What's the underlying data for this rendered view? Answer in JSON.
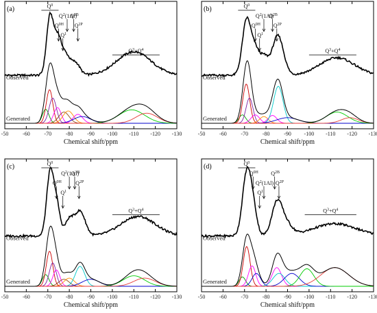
{
  "figure": {
    "axis_title": "Chemical shift/ppm",
    "trace_labels": {
      "observed": "Observed",
      "generated": "Generated"
    },
    "colors": {
      "observed": "#000000",
      "envelope": "#000000",
      "components": [
        "#00a000",
        "#7b1fa2",
        "#cc0000",
        "#ff00ff",
        "#8b4513",
        "#ff8c00",
        "#00c8c8",
        "#0000cc",
        "#00cc00",
        "#e53935",
        "#2e7d32",
        "#1565c0"
      ]
    }
  },
  "chart_data": [
    {
      "id": "a",
      "panel_label": "(a)",
      "type": "line",
      "xlim": [
        -50,
        -130
      ],
      "x_ticks": [
        -50,
        -60,
        -70,
        -80,
        -90,
        -100,
        -110,
        -120,
        -130
      ],
      "grid": false,
      "legend": "none",
      "annotations": [
        {
          "label": "Q",
          "sup": "0",
          "x_start": -67,
          "x_end": -75,
          "kind": "bracket"
        },
        {
          "label": "Q",
          "sup": "2",
          "suffix": "(1Al)",
          "x": -79,
          "kind": "arrow"
        },
        {
          "label": "Q",
          "sup": "0H",
          "x": -75,
          "kind": "arrow"
        },
        {
          "label": "Q",
          "sup": "1",
          "x": -77,
          "kind": "arrow"
        },
        {
          "label": "Q",
          "sup": "2B",
          "x": -82,
          "kind": "arrow"
        },
        {
          "label": "Q",
          "sup": "2P",
          "x": -84,
          "kind": "arrow"
        },
        {
          "label": "Q",
          "sup": "3",
          "mid": "+Q",
          "sup2": "4",
          "x_start": -100,
          "x_end": -122,
          "kind": "bracket"
        }
      ],
      "observed_peaks": [
        {
          "center": -71,
          "height": 1.0,
          "width": 1.6
        },
        {
          "center": -74.5,
          "height": 0.55,
          "width": 1.6
        },
        {
          "center": -78,
          "height": 0.36,
          "width": 2.2
        },
        {
          "center": -83,
          "height": 0.2,
          "width": 2.0
        },
        {
          "center": -110,
          "height": 0.4,
          "width": 8.0
        }
      ],
      "components": [
        {
          "center": -69,
          "height": 0.25,
          "width": 1.5,
          "color_index": 0
        },
        {
          "center": -70.8,
          "height": 0.6,
          "width": 1.5,
          "color_index": 2
        },
        {
          "center": -72.3,
          "height": 0.45,
          "width": 1.7,
          "color_index": 1
        },
        {
          "center": -74.5,
          "height": 0.28,
          "width": 1.7,
          "color_index": 3
        },
        {
          "center": -77.5,
          "height": 0.2,
          "width": 2.4,
          "color_index": 4
        },
        {
          "center": -79.5,
          "height": 0.22,
          "width": 2.4,
          "color_index": 5
        },
        {
          "center": -84,
          "height": 0.16,
          "width": 2.2,
          "color_index": 3
        },
        {
          "center": -86,
          "height": 0.12,
          "width": 4.0,
          "color_index": 7
        },
        {
          "center": -109,
          "height": 0.24,
          "width": 6.0,
          "color_index": 8
        },
        {
          "center": -116,
          "height": 0.18,
          "width": 5.0,
          "color_index": 9
        }
      ]
    },
    {
      "id": "b",
      "panel_label": "(b)",
      "type": "line",
      "xlim": [
        -50,
        -130
      ],
      "x_ticks": [
        -50,
        -60,
        -70,
        -80,
        -90,
        -100,
        -110,
        -120,
        -130
      ],
      "grid": false,
      "legend": "none",
      "annotations": [
        {
          "label": "Q",
          "sup": "0",
          "x_start": -67,
          "x_end": -75,
          "kind": "bracket"
        },
        {
          "label": "Q",
          "sup": "2",
          "suffix": "(1Al)",
          "x": -79,
          "kind": "arrow"
        },
        {
          "label": "Q",
          "sup": "0H",
          "x": -75,
          "kind": "arrow"
        },
        {
          "label": "Q",
          "sup": "1",
          "x": -77,
          "kind": "arrow"
        },
        {
          "label": "Q",
          "sup": "2B",
          "x": -83,
          "kind": "arrow"
        },
        {
          "label": "Q",
          "sup": "2P",
          "x": -85,
          "kind": "arrow"
        },
        {
          "label": "Q",
          "sup": "3",
          "mid": "+Q",
          "sup2": "4",
          "x_start": -100,
          "x_end": -122,
          "kind": "bracket"
        }
      ],
      "observed_peaks": [
        {
          "center": -71,
          "height": 0.95,
          "width": 2.0
        },
        {
          "center": -75,
          "height": 0.38,
          "width": 1.8
        },
        {
          "center": -79,
          "height": 0.3,
          "width": 2.0
        },
        {
          "center": -85.5,
          "height": 0.68,
          "width": 2.6
        },
        {
          "center": -113,
          "height": 0.3,
          "width": 8.0
        }
      ],
      "components": [
        {
          "center": -69,
          "height": 0.15,
          "width": 1.6,
          "color_index": 0
        },
        {
          "center": -70.8,
          "height": 0.7,
          "width": 1.6,
          "color_index": 2
        },
        {
          "center": -72.3,
          "height": 0.45,
          "width": 1.6,
          "color_index": 1
        },
        {
          "center": -75,
          "height": 0.15,
          "width": 2.0,
          "color_index": 3
        },
        {
          "center": -79,
          "height": 0.12,
          "width": 2.0,
          "color_index": 5
        },
        {
          "center": -83,
          "height": 0.14,
          "width": 2.0,
          "color_index": 3
        },
        {
          "center": -85.7,
          "height": 0.66,
          "width": 2.2,
          "color_index": 6
        },
        {
          "center": -90,
          "height": 0.1,
          "width": 5.0,
          "color_index": 7
        },
        {
          "center": -113,
          "height": 0.2,
          "width": 5.0,
          "color_index": 8
        },
        {
          "center": -119,
          "height": 0.1,
          "width": 4.0,
          "color_index": 9
        }
      ]
    },
    {
      "id": "c",
      "panel_label": "(c)",
      "type": "line",
      "xlim": [
        -50,
        -130
      ],
      "x_ticks": [
        -50,
        -60,
        -70,
        -80,
        -90,
        -100,
        -110,
        -120,
        -130
      ],
      "grid": false,
      "legend": "none",
      "annotations": [
        {
          "label": "Q",
          "sup": "0",
          "x_start": -67,
          "x_end": -75,
          "kind": "bracket"
        },
        {
          "label": "Q",
          "sup": "2",
          "suffix": "(1Al)",
          "x": -80,
          "kind": "arrow"
        },
        {
          "label": "Q",
          "sup": "0H",
          "x": -74,
          "kind": "arrow"
        },
        {
          "label": "Q",
          "sup": "1",
          "x": -77,
          "kind": "arrow"
        },
        {
          "label": "Q",
          "sup": "2B",
          "x": -82.5,
          "kind": "arrow"
        },
        {
          "label": "Q",
          "sup": "2P",
          "x": -84.5,
          "kind": "arrow"
        },
        {
          "label": "Q",
          "sup": "3",
          "mid": "+Q",
          "sup2": "4",
          "x_start": -100,
          "x_end": -122,
          "kind": "bracket"
        }
      ],
      "observed_peaks": [
        {
          "center": -71,
          "height": 1.0,
          "width": 1.6
        },
        {
          "center": -74,
          "height": 0.52,
          "width": 1.6
        },
        {
          "center": -80,
          "height": 0.26,
          "width": 2.0
        },
        {
          "center": -85,
          "height": 0.4,
          "width": 2.4
        },
        {
          "center": -112,
          "height": 0.32,
          "width": 8.0
        }
      ],
      "components": [
        {
          "center": -69,
          "height": 0.2,
          "width": 1.5,
          "color_index": 0
        },
        {
          "center": -70.8,
          "height": 0.6,
          "width": 1.5,
          "color_index": 2
        },
        {
          "center": -72.3,
          "height": 0.4,
          "width": 1.6,
          "color_index": 1
        },
        {
          "center": -74,
          "height": 0.28,
          "width": 1.6,
          "color_index": 3
        },
        {
          "center": -77.5,
          "height": 0.12,
          "width": 2.4,
          "color_index": 4
        },
        {
          "center": -80,
          "height": 0.14,
          "width": 2.4,
          "color_index": 5
        },
        {
          "center": -85,
          "height": 0.34,
          "width": 2.2,
          "color_index": 6
        },
        {
          "center": -90,
          "height": 0.12,
          "width": 4.0,
          "color_index": 7
        },
        {
          "center": -110,
          "height": 0.18,
          "width": 5.0,
          "color_index": 8
        },
        {
          "center": -115,
          "height": 0.14,
          "width": 5.0,
          "color_index": 9
        }
      ]
    },
    {
      "id": "d",
      "panel_label": "(d)",
      "type": "line",
      "xlim": [
        -50,
        -130
      ],
      "x_ticks": [
        -50,
        -60,
        -70,
        -80,
        -90,
        -100,
        -110,
        -120,
        -130
      ],
      "grid": false,
      "legend": "none",
      "annotations": [
        {
          "label": "Q",
          "sup": "0",
          "x_start": -67,
          "x_end": -75,
          "kind": "bracket"
        },
        {
          "label": "Q",
          "sup": "0H",
          "x": -74,
          "kind": "arrow"
        },
        {
          "label": "Q",
          "sup": "2",
          "suffix": "(1Al)",
          "x": -79,
          "kind": "arrow"
        },
        {
          "label": "Q",
          "sup": "1",
          "x": -77,
          "kind": "arrow"
        },
        {
          "label": "Q",
          "sup": "2B",
          "x": -84,
          "kind": "arrow"
        },
        {
          "label": "Q",
          "sup": "2P",
          "x": -86,
          "kind": "arrow"
        },
        {
          "label": "Q",
          "sup": "3",
          "mid": "+Q",
          "sup2": "4",
          "x_start": -98,
          "x_end": -122,
          "kind": "bracket"
        }
      ],
      "observed_peaks": [
        {
          "center": -71,
          "height": 1.0,
          "width": 2.0
        },
        {
          "center": -74,
          "height": 0.4,
          "width": 1.8
        },
        {
          "center": -85,
          "height": 0.5,
          "width": 2.4
        },
        {
          "center": -89,
          "height": 0.2,
          "width": 3.0
        },
        {
          "center": -112,
          "height": 0.2,
          "width": 10.0
        }
      ],
      "components": [
        {
          "center": -69,
          "height": 0.16,
          "width": 1.5,
          "color_index": 0
        },
        {
          "center": -71,
          "height": 0.68,
          "width": 1.6,
          "color_index": 2
        },
        {
          "center": -73.5,
          "height": 0.35,
          "width": 1.7,
          "color_index": 3
        },
        {
          "center": -75.5,
          "height": 0.22,
          "width": 2.0,
          "color_index": 7
        },
        {
          "center": -85,
          "height": 0.32,
          "width": 2.2,
          "color_index": 3
        },
        {
          "center": -86,
          "height": 0.22,
          "width": 2.8,
          "color_index": 6
        },
        {
          "center": -92,
          "height": 0.22,
          "width": 3.5,
          "color_index": 7
        },
        {
          "center": -99,
          "height": 0.3,
          "width": 3.2,
          "color_index": 8
        },
        {
          "center": -112,
          "height": 0.32,
          "width": 6.5,
          "color_index": 9
        }
      ]
    }
  ]
}
